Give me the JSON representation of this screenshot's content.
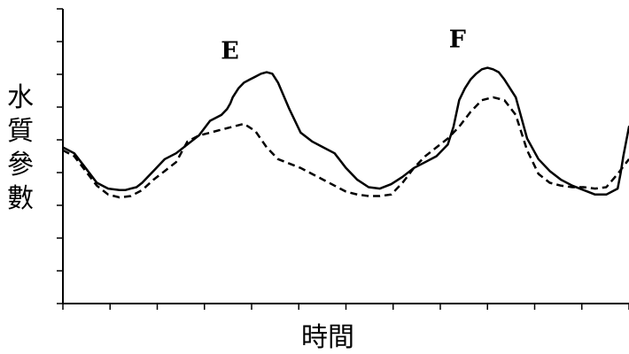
{
  "chart_data": {
    "type": "line",
    "xlabel": "時間",
    "ylabel": "水質參數",
    "ylabel_chars": [
      "水",
      "質",
      "參",
      "數"
    ],
    "grid": false,
    "colors": {
      "axis": "#000000",
      "series": "#000000"
    },
    "series": [
      {
        "style": "solid",
        "x": [
          0,
          2,
          4,
          6,
          8,
          10,
          11,
          12,
          13,
          14,
          16,
          18,
          20,
          22,
          24,
          26,
          28,
          29,
          29.6,
          30,
          31,
          32,
          33,
          34,
          35,
          36,
          37,
          38,
          40,
          42,
          44,
          46,
          48,
          50,
          52,
          54,
          56,
          58,
          60,
          62,
          64,
          66,
          68,
          69,
          70,
          71,
          72,
          73,
          74,
          75,
          76,
          77,
          78,
          80,
          82,
          84,
          86,
          88,
          90,
          92,
          94,
          96,
          98,
          98.5,
          99,
          100
        ],
        "y": [
          53,
          51,
          46,
          41,
          39,
          38.5,
          38.5,
          39,
          39.5,
          41,
          45,
          49,
          51,
          54,
          57,
          62,
          64,
          66,
          68,
          70,
          73,
          75,
          76,
          77,
          78,
          78.5,
          78,
          75,
          66,
          58,
          55,
          53,
          51,
          46,
          42,
          39.5,
          39,
          40.5,
          43,
          46,
          48,
          50,
          54,
          60,
          69,
          73,
          76,
          78,
          79.5,
          80,
          79.5,
          78.5,
          76,
          70,
          56,
          49,
          45,
          42,
          40,
          38.5,
          37,
          37,
          39,
          44,
          50,
          60
        ]
      },
      {
        "style": "dashed",
        "x": [
          0,
          2,
          4,
          6,
          8,
          10,
          12,
          14,
          16,
          18,
          20,
          22,
          24,
          26,
          28,
          30,
          32,
          34,
          36,
          38,
          40,
          42,
          44,
          46,
          48,
          50,
          52,
          54,
          56,
          58,
          60,
          62,
          64,
          66,
          68,
          70,
          72,
          74,
          76,
          78,
          80,
          82,
          84,
          86,
          88,
          90,
          92,
          94,
          96,
          98,
          100
        ],
        "y": [
          52,
          50,
          45,
          40,
          37,
          36,
          36.5,
          38.5,
          42,
          45,
          48,
          55,
          57,
          58,
          59,
          60,
          61,
          58.5,
          53,
          49,
          47.5,
          46,
          44,
          42,
          40,
          38,
          37,
          36.5,
          36.5,
          37,
          41,
          46,
          50,
          53,
          56,
          60,
          65,
          69,
          70,
          69,
          64,
          52,
          44,
          41,
          40,
          39.5,
          39.5,
          39,
          39.5,
          44,
          49
        ]
      }
    ],
    "annotations": [
      {
        "text": "E",
        "x": 29.5,
        "y": 83
      },
      {
        "text": "F",
        "x": 69.7,
        "y": 87
      }
    ],
    "xlim": [
      0,
      100
    ],
    "ylim": [
      0,
      100
    ]
  }
}
